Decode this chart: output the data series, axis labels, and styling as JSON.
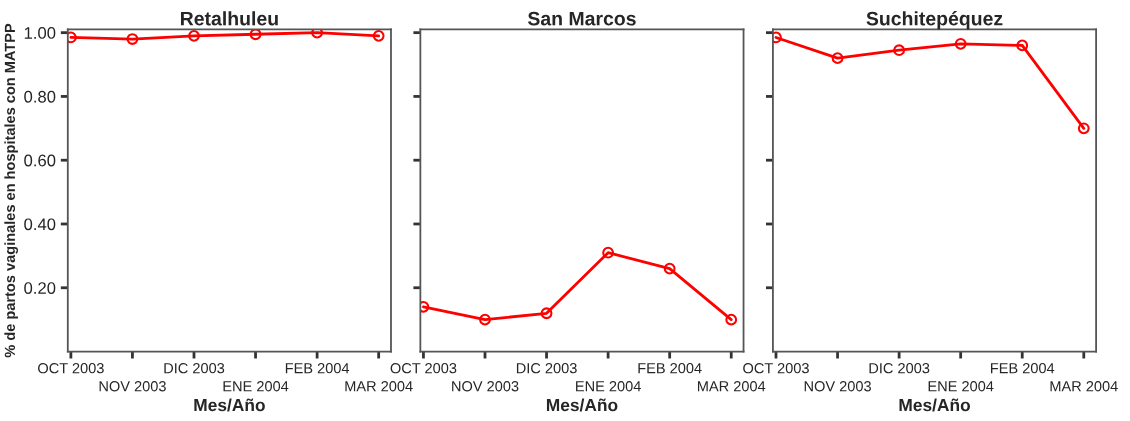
{
  "chart_data": [
    {
      "type": "line",
      "title": "Retalhuleu",
      "xlabel": "Mes/Año",
      "ylabel": "% de partos vaginales en hospitales con MATPP",
      "categories": [
        "OCT 2003",
        "NOV 2003",
        "DIC 2003",
        "ENE 2004",
        "FEB 2004",
        "MAR 2004"
      ],
      "series": [
        {
          "color": "#ff0000",
          "values": [
            0.985,
            0.98,
            0.99,
            0.995,
            1.0,
            0.99
          ]
        }
      ],
      "ylim": [
        0,
        1.01
      ],
      "yticks": [
        {
          "value": 0.2,
          "label": "0.20"
        },
        {
          "value": 0.4,
          "label": "0.40"
        },
        {
          "value": 0.6,
          "label": "0.60"
        },
        {
          "value": 0.8,
          "label": "0.80"
        },
        {
          "value": 1.0,
          "label": "1.00"
        }
      ],
      "marker": "circle",
      "line_style": "solid"
    },
    {
      "type": "line",
      "title": "San Marcos",
      "xlabel": "Mes/Año",
      "categories": [
        "OCT 2003",
        "NOV 2003",
        "DIC 2003",
        "ENE 2004",
        "FEB 2004",
        "MAR 2004"
      ],
      "series": [
        {
          "color": "#ff0000",
          "values": [
            0.14,
            0.1,
            0.12,
            0.31,
            0.26,
            0.1
          ]
        }
      ],
      "ylim": [
        0,
        1.01
      ],
      "yticks": [
        {
          "value": 0.2,
          "label": null
        },
        {
          "value": 0.4,
          "label": null
        },
        {
          "value": 0.6,
          "label": null
        },
        {
          "value": 0.8,
          "label": null
        },
        {
          "value": 1.0,
          "label": null
        }
      ],
      "tick_labels": "x",
      "marker": "circle",
      "line_style": "solid"
    },
    {
      "type": "line",
      "title": "Suchitepéquez",
      "xlabel": "Mes/Año",
      "categories": [
        "OCT 2003",
        "NOV 2003",
        "DIC 2003",
        "ENE 2004",
        "FEB 2004",
        "MAR 2004"
      ],
      "series": [
        {
          "color": "#ff0000",
          "values": [
            0.985,
            0.92,
            0.945,
            0.965,
            0.96,
            0.7
          ]
        }
      ],
      "ylim": [
        0,
        1.01
      ],
      "yticks": [
        {
          "value": 0.2,
          "label": null
        },
        {
          "value": 0.4,
          "label": null
        },
        {
          "value": 0.6,
          "label": null
        },
        {
          "value": 0.8,
          "label": null
        },
        {
          "value": 1.0,
          "label": null
        }
      ],
      "tick_labels": "x",
      "marker": "circle",
      "line_style": "solid"
    }
  ]
}
